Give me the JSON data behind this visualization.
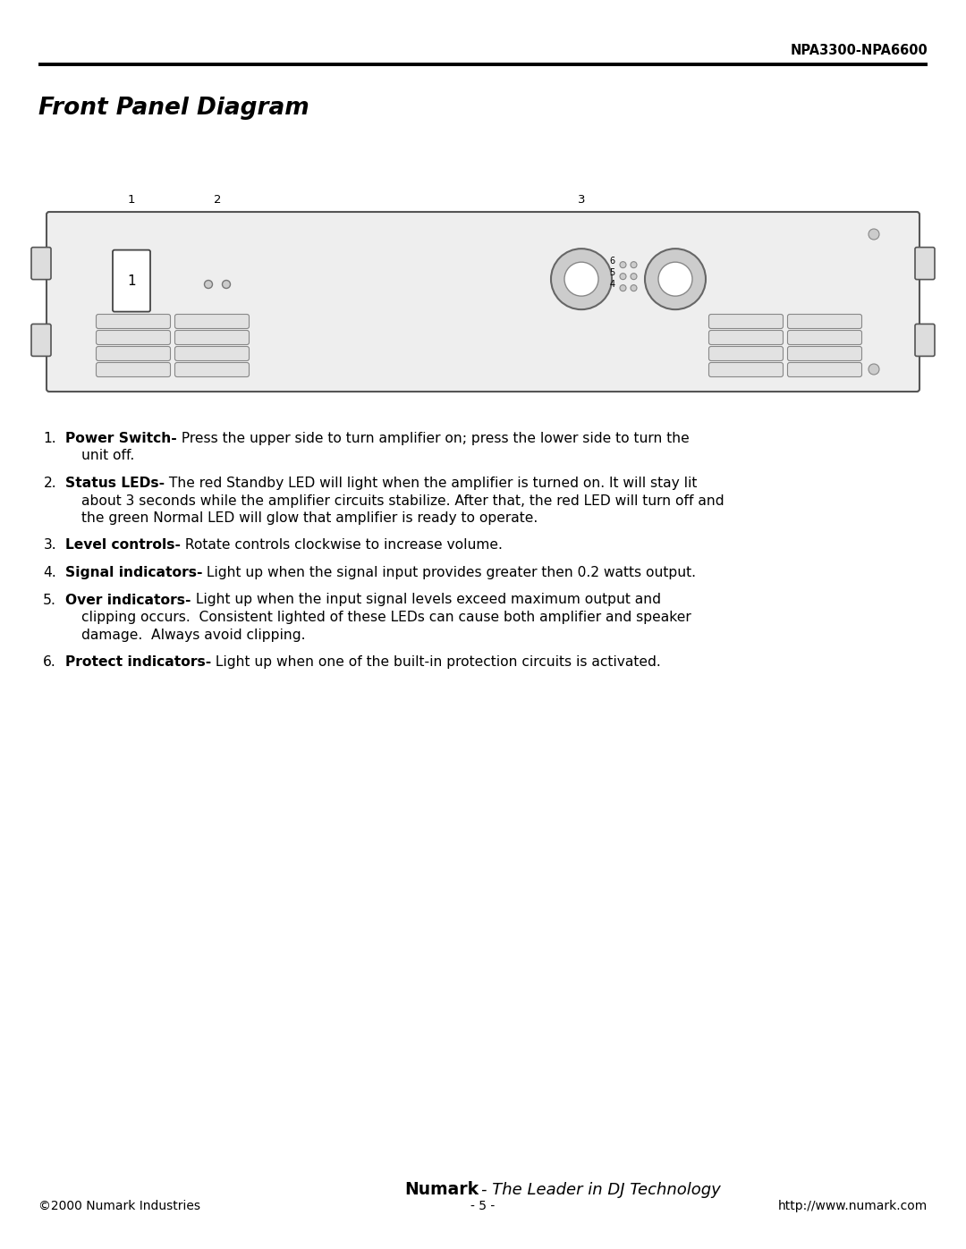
{
  "page_title": "NPA3300-NPA6600",
  "section_title": "Front Panel Diagram",
  "bg_color": "#ffffff",
  "items": [
    {
      "num": "1.",
      "bold": "Power Switch-",
      "normal": " Press the upper side to turn amplifier on; press the lower side to turn the unit off."
    },
    {
      "num": "2.",
      "bold": "Status LEDs-",
      "normal": " The red Standby LED will light when the amplifier is turned on. It will stay lit about 3 seconds while the amplifier circuits stabilize. After that, the red LED will turn off and the green Normal LED will glow that amplifier is ready to operate."
    },
    {
      "num": "3.",
      "bold": "Level controls-",
      "normal": " Rotate controls clockwise to increase volume."
    },
    {
      "num": "4.",
      "bold": "Signal indicators-",
      "normal": " Light up when the signal input provides greater then 0.2 watts output."
    },
    {
      "num": "5.",
      "bold": "Over indicators-",
      "normal": " Light up when the input signal levels exceed maximum output and clipping occurs.  Consistent lighted of these LEDs can cause both amplifier and speaker damage.  Always avoid clipping."
    },
    {
      "num": "6.",
      "bold": "Protect indicators-",
      "normal": " Light up when one of the built-in protection circuits is activated."
    }
  ],
  "footer_brand": "Numark",
  "footer_tagline": "- The Leader in DJ Technology",
  "footer_copy": "©2000 Numark Industries",
  "footer_page": "- 5 -",
  "footer_url": "http://www.numark.com"
}
